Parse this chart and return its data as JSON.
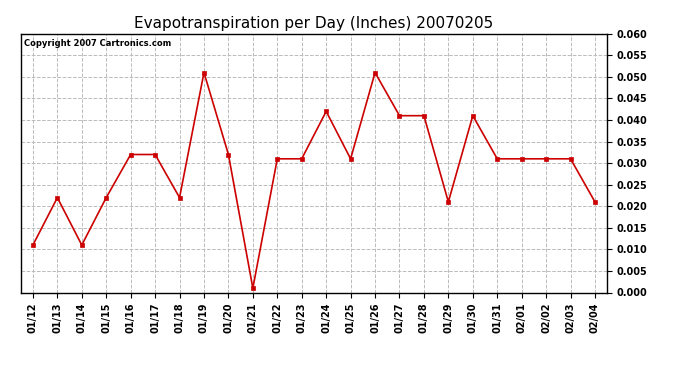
{
  "title": "Evapotranspiration per Day (Inches) 20070205",
  "copyright_text": "Copyright 2007 Cartronics.com",
  "dates": [
    "01/12",
    "01/13",
    "01/14",
    "01/15",
    "01/16",
    "01/17",
    "01/18",
    "01/19",
    "01/20",
    "01/21",
    "01/22",
    "01/23",
    "01/24",
    "01/25",
    "01/26",
    "01/27",
    "01/28",
    "01/29",
    "01/30",
    "01/31",
    "02/01",
    "02/02",
    "02/03",
    "02/04"
  ],
  "values": [
    0.011,
    0.022,
    0.011,
    0.022,
    0.032,
    0.032,
    0.022,
    0.051,
    0.032,
    0.001,
    0.031,
    0.031,
    0.042,
    0.031,
    0.051,
    0.041,
    0.041,
    0.021,
    0.041,
    0.031,
    0.031,
    0.031,
    0.031,
    0.021
  ],
  "line_color": "#cc0000",
  "marker": "s",
  "marker_size": 2.5,
  "ylim": [
    0.0,
    0.06
  ],
  "ytick_step": 0.005,
  "background_color": "#ffffff",
  "plot_bg_color": "#ffffff",
  "grid_color": "#bbbbbb",
  "grid_linestyle": "--",
  "title_fontsize": 11,
  "copyright_fontsize": 6,
  "tick_fontsize": 7,
  "line_width": 1.2
}
